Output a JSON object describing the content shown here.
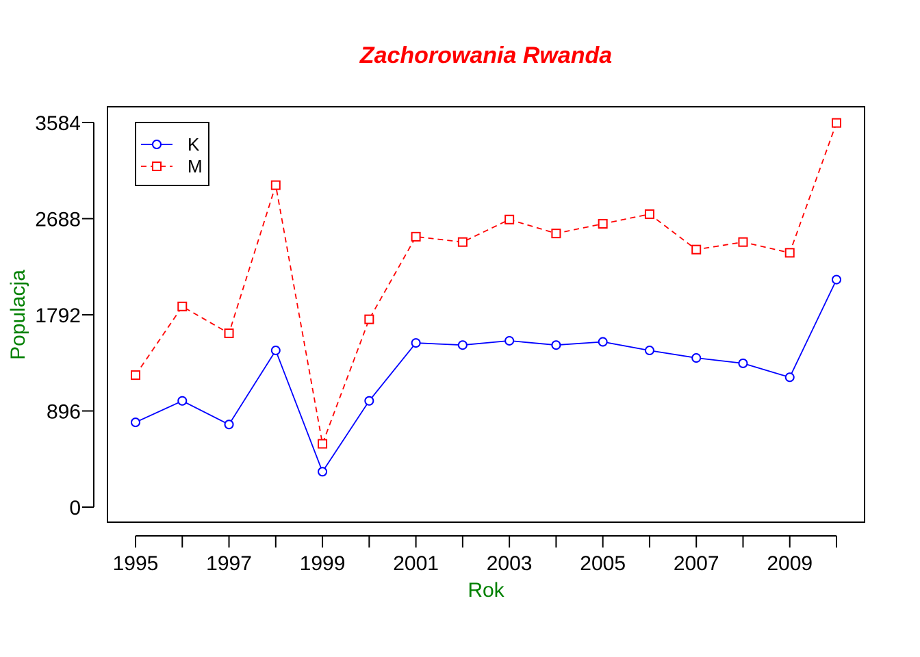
{
  "chart_data": {
    "type": "line",
    "title": "Zachorowania Rwanda",
    "xlabel": "Rok",
    "ylabel": "Populacja",
    "title_color": "#ff0000",
    "label_color": "#008000",
    "x": [
      1995,
      1996,
      1997,
      1998,
      1999,
      2000,
      2001,
      2002,
      2003,
      2004,
      2005,
      2006,
      2007,
      2008,
      2009,
      2010
    ],
    "x_tick_labels": [
      "1995",
      "1997",
      "1999",
      "2001",
      "2003",
      "2005",
      "2007",
      "2009"
    ],
    "y_ticks": [
      0,
      896,
      1792,
      2688,
      3584
    ],
    "y_tick_labels": [
      "0",
      "896",
      "1792",
      "2688",
      "3584"
    ],
    "xlim": [
      1995,
      2010
    ],
    "ylim": [
      0,
      3584
    ],
    "grid": false,
    "legend_position": "top-left",
    "series": [
      {
        "name": "K",
        "color": "#0000ff",
        "line_style": "solid",
        "marker": "circle",
        "values": [
          790,
          990,
          770,
          1460,
          330,
          990,
          1530,
          1510,
          1550,
          1510,
          1540,
          1460,
          1390,
          1340,
          1210,
          2120
        ]
      },
      {
        "name": "M",
        "color": "#ff0000",
        "line_style": "dashed",
        "marker": "square",
        "values": [
          1230,
          1870,
          1620,
          3000,
          590,
          1750,
          2520,
          2470,
          2680,
          2550,
          2640,
          2730,
          2400,
          2470,
          2370,
          3580
        ]
      }
    ]
  }
}
